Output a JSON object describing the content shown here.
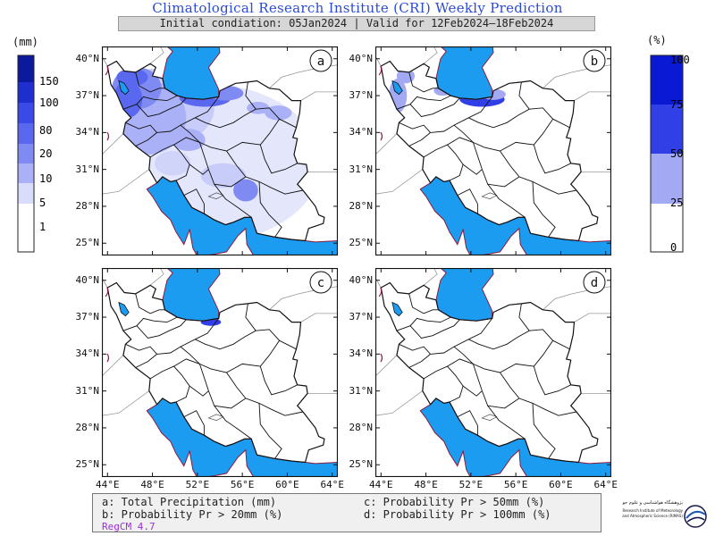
{
  "header": {
    "title": "Climatological Research Institute (CRI) Weekly Prediction",
    "subtitle": "Initial condiation: 05Jan2024 | Valid for 12Feb2024–18Feb2024"
  },
  "colorbars": {
    "left": {
      "unit": "(mm)",
      "ticks": [
        "150",
        "100",
        "80",
        "20",
        "10",
        "5",
        "1"
      ],
      "colors": [
        "#0b1a9c",
        "#1f2fcf",
        "#3a4ae6",
        "#5a68f0",
        "#7f8af2",
        "#aab1f6",
        "#d9dcfb",
        "#ffffff"
      ]
    },
    "right": {
      "unit": "(%)",
      "ticks": [
        "100",
        "75",
        "50",
        "25",
        "0"
      ],
      "colors": [
        "#0a1ad4",
        "#3040e6",
        "#a4a9f4",
        "#ffffff"
      ]
    }
  },
  "axes": {
    "lat_labels": [
      "40°N",
      "37°N",
      "34°N",
      "31°N",
      "28°N",
      "25°N"
    ],
    "lon_labels": [
      "44°E",
      "48°E",
      "52°E",
      "56°E",
      "60°E",
      "64°E"
    ]
  },
  "panels": [
    {
      "letter": "a"
    },
    {
      "letter": "b"
    },
    {
      "letter": "c"
    },
    {
      "letter": "d"
    }
  ],
  "legend": {
    "a": "a: Total Precipitation (mm)",
    "b": "b: Probability Pr > 20mm (%)",
    "c": "c: Probability Pr > 50mm (%)",
    "d": "d: Probability Pr > 100mm (%)",
    "model": "RegCM 4.7"
  },
  "logo": {
    "line1": "پژوهشگاه هواشناسی و علوم جو",
    "line2": "Research Institute of Meteorology",
    "line3": "and Atmospheric Science (RIMAS)"
  },
  "colors": {
    "water": "#1c9cf0",
    "border": "#111111",
    "coast": "#8a1a3a"
  }
}
